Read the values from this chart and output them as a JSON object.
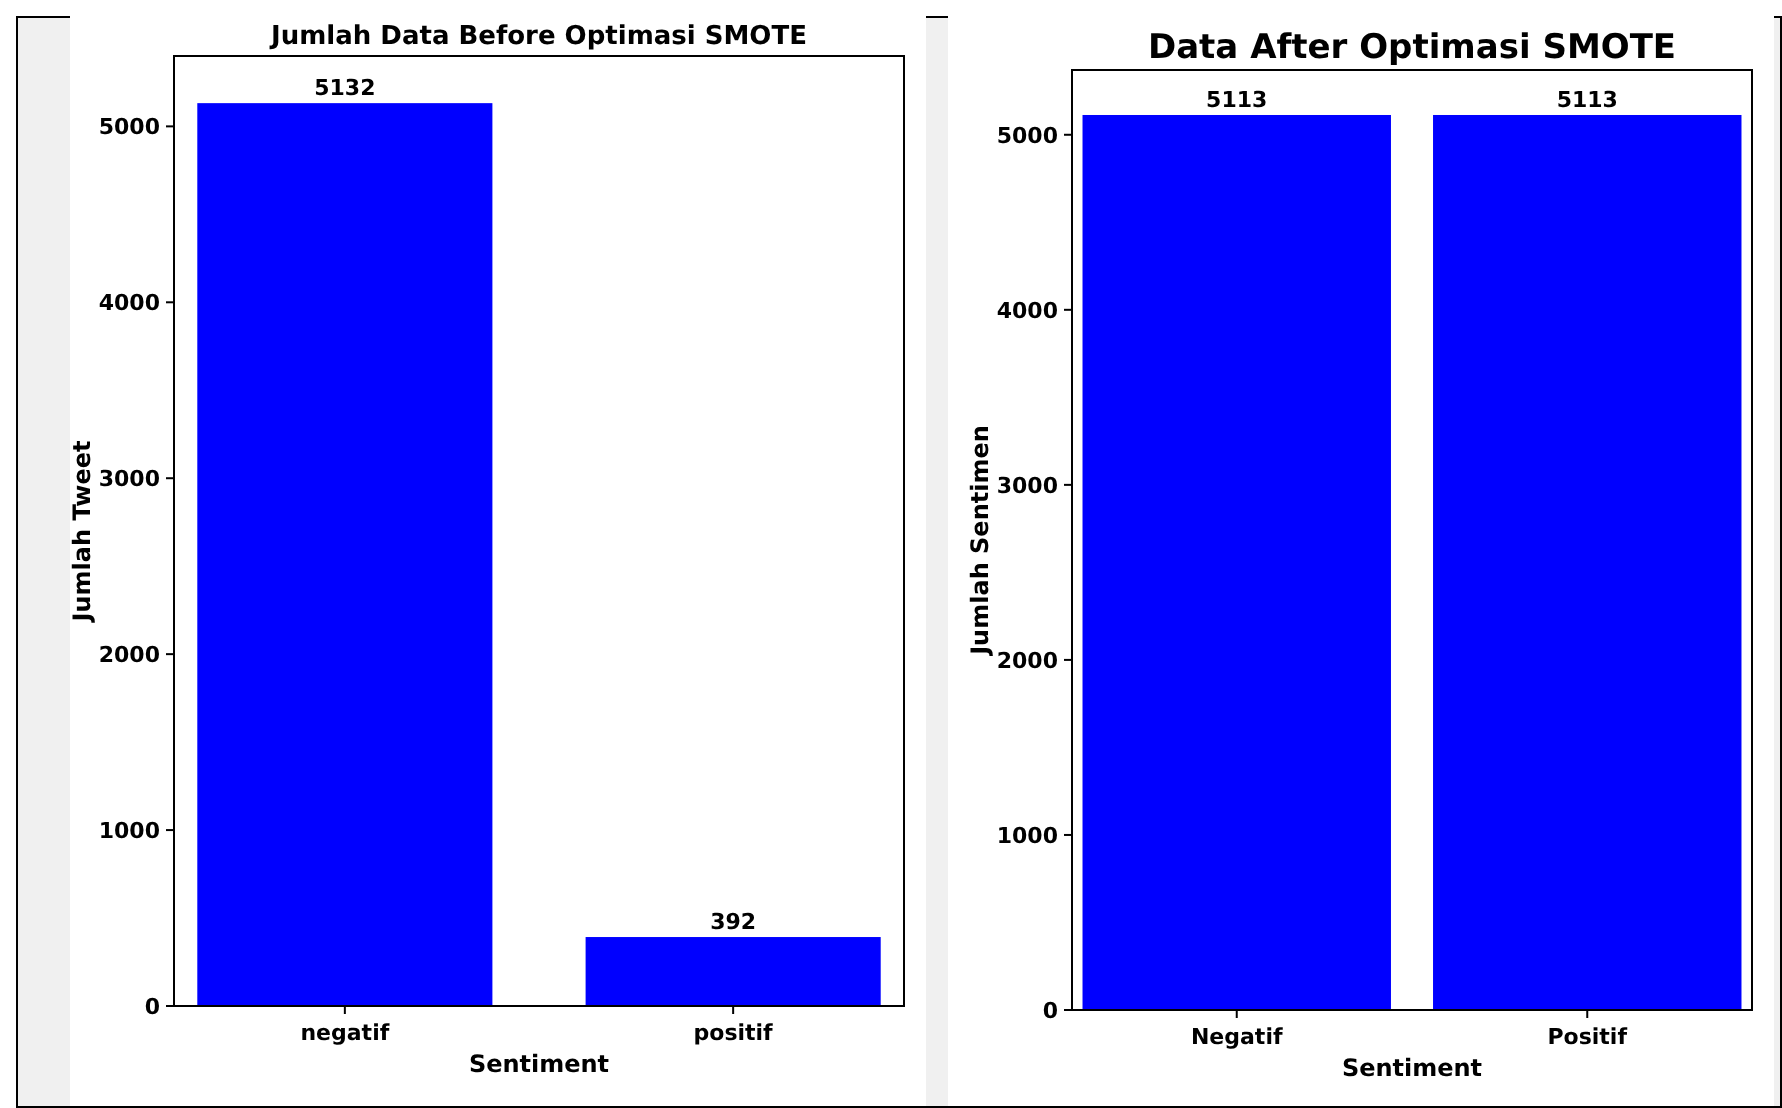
{
  "chart_data": [
    {
      "type": "bar",
      "title": "Jumlah Data Before Optimasi SMOTE",
      "xlabel": "Sentiment",
      "ylabel": "Jumlah Tweet",
      "categories": [
        "negatif",
        "positif"
      ],
      "values": [
        5132,
        392
      ],
      "color": "#0000ff",
      "ylim": [
        0,
        5400
      ],
      "yticks": [
        0,
        1000,
        2000,
        3000,
        4000,
        5000
      ],
      "data_labels": true,
      "grid": false
    },
    {
      "type": "bar",
      "title": "Data After Optimasi SMOTE",
      "xlabel": "Sentiment",
      "ylabel": "Jumlah Sentimen",
      "categories": [
        "Negatif",
        "Positif"
      ],
      "values": [
        5113,
        5113
      ],
      "color": "#0000ff",
      "ylim": [
        0,
        5370
      ],
      "yticks": [
        0,
        1000,
        2000,
        3000,
        4000,
        5000
      ],
      "data_labels": true,
      "grid": false
    }
  ]
}
